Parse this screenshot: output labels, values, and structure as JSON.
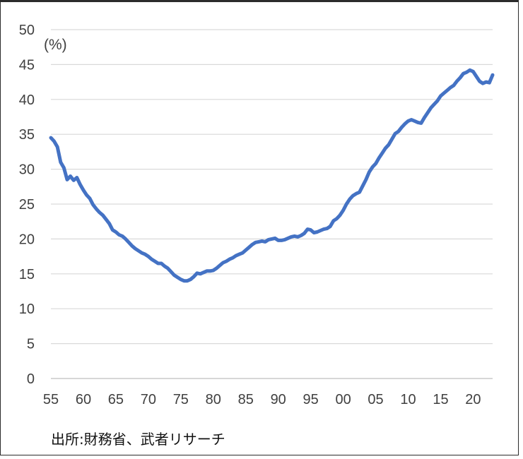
{
  "chart_data": {
    "type": "line",
    "unit_label": "(%)",
    "ylim": [
      0,
      50
    ],
    "y_ticks": [
      0,
      5,
      10,
      15,
      20,
      25,
      30,
      35,
      40,
      45,
      50
    ],
    "x_tick_values": [
      1955,
      1960,
      1965,
      1970,
      1975,
      1980,
      1985,
      1990,
      1995,
      2000,
      2005,
      2010,
      2015,
      2020
    ],
    "x_tick_labels": [
      "55",
      "60",
      "65",
      "70",
      "75",
      "80",
      "85",
      "90",
      "95",
      "00",
      "05",
      "10",
      "15",
      "20"
    ],
    "xlim": [
      1955,
      2023
    ],
    "grid": true,
    "line_color": "#4472C4",
    "series": [
      {
        "x": [
          1955,
          1955.5,
          1956,
          1956.5,
          1957,
          1957.5,
          1958,
          1958.5,
          1959,
          1959.5,
          1960,
          1960.5,
          1961,
          1961.5,
          1962,
          1962.5,
          1963,
          1963.5,
          1964,
          1964.5,
          1965,
          1965.5,
          1966,
          1966.5,
          1967,
          1967.5,
          1968,
          1968.5,
          1969,
          1969.5,
          1970,
          1970.5,
          1971,
          1971.5,
          1972,
          1972.5,
          1973,
          1973.5,
          1974,
          1974.5,
          1975,
          1975.5,
          1976,
          1976.5,
          1977,
          1977.5,
          1978,
          1978.5,
          1979,
          1979.5,
          1980,
          1980.5,
          1981,
          1981.5,
          1982,
          1982.5,
          1983,
          1983.5,
          1984,
          1984.5,
          1985,
          1985.5,
          1986,
          1986.5,
          1987,
          1987.5,
          1988,
          1988.5,
          1989,
          1989.5,
          1990,
          1990.5,
          1991,
          1991.5,
          1992,
          1992.5,
          1993,
          1993.5,
          1994,
          1994.5,
          1995,
          1995.5,
          1996,
          1996.5,
          1997,
          1997.5,
          1998,
          1998.5,
          1999,
          1999.5,
          2000,
          2000.5,
          2001,
          2001.5,
          2002,
          2002.5,
          2003,
          2003.5,
          2004,
          2004.5,
          2005,
          2005.5,
          2006,
          2006.5,
          2007,
          2007.5,
          2008,
          2008.5,
          2009,
          2009.5,
          2010,
          2010.5,
          2011,
          2011.5,
          2012,
          2012.5,
          2013,
          2013.5,
          2014,
          2014.5,
          2015,
          2015.5,
          2016,
          2016.5,
          2017,
          2017.5,
          2018,
          2018.5,
          2019,
          2019.5,
          2020,
          2020.5,
          2021,
          2021.5,
          2022,
          2022.5,
          2023
        ],
        "values": [
          34.5,
          34.0,
          33.2,
          31.0,
          30.2,
          28.5,
          29.0,
          28.4,
          28.8,
          27.8,
          27.0,
          26.3,
          25.8,
          24.9,
          24.3,
          23.8,
          23.4,
          22.8,
          22.2,
          21.3,
          21.0,
          20.6,
          20.4,
          20.0,
          19.5,
          19.0,
          18.6,
          18.3,
          18.0,
          17.8,
          17.5,
          17.1,
          16.8,
          16.5,
          16.5,
          16.1,
          15.8,
          15.3,
          14.8,
          14.5,
          14.2,
          14.0,
          14.0,
          14.2,
          14.6,
          15.1,
          15.0,
          15.2,
          15.4,
          15.4,
          15.5,
          15.8,
          16.2,
          16.6,
          16.8,
          17.1,
          17.3,
          17.6,
          17.8,
          18.0,
          18.4,
          18.8,
          19.2,
          19.5,
          19.6,
          19.7,
          19.6,
          19.9,
          20.0,
          20.1,
          19.8,
          19.8,
          19.9,
          20.1,
          20.3,
          20.4,
          20.3,
          20.5,
          20.8,
          21.4,
          21.3,
          20.9,
          21.0,
          21.2,
          21.4,
          21.5,
          21.8,
          22.6,
          22.9,
          23.4,
          24.1,
          25.0,
          25.7,
          26.2,
          26.5,
          26.7,
          27.6,
          28.5,
          29.6,
          30.3,
          30.8,
          31.6,
          32.3,
          33.0,
          33.5,
          34.3,
          35.1,
          35.4,
          36.0,
          36.5,
          36.9,
          37.1,
          36.9,
          36.7,
          36.6,
          37.4,
          38.1,
          38.8,
          39.3,
          39.8,
          40.5,
          40.9,
          41.3,
          41.7,
          42.0,
          42.6,
          43.1,
          43.7,
          43.9,
          44.2,
          44.0,
          43.3,
          42.6,
          42.3,
          42.5,
          42.4,
          43.5
        ]
      }
    ]
  },
  "source_note": "出所:財務省、武者リサーチ"
}
